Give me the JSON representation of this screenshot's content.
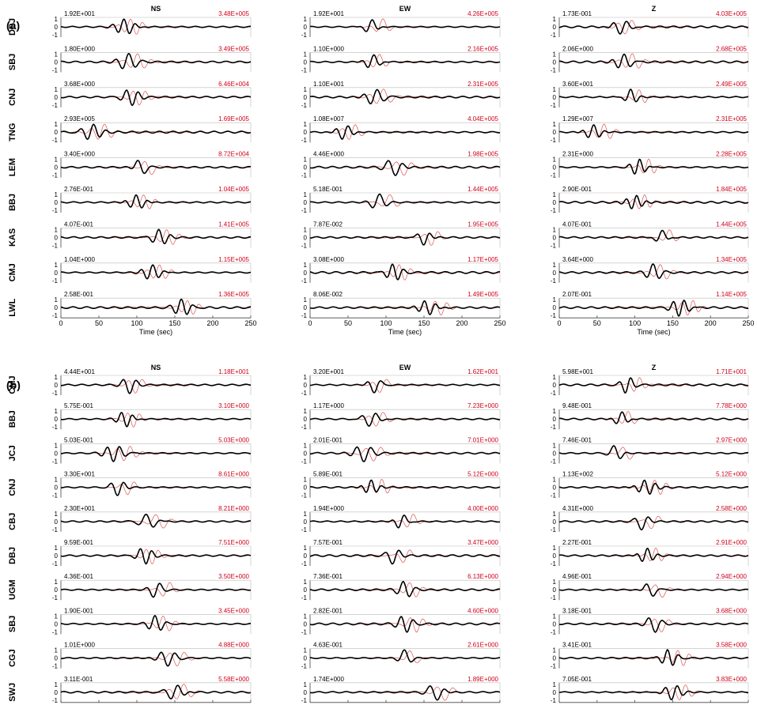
{
  "chart_data": {
    "type": "line",
    "xlim": [
      0,
      250
    ],
    "ylim": [
      -1,
      1
    ],
    "x_ticks": [
      "0",
      "50",
      "100",
      "150",
      "200",
      "250"
    ],
    "y_ticks": [
      "1",
      "0",
      "-1"
    ],
    "xlabel": "Time (sec)",
    "grid": false,
    "colors": {
      "observed": "#000000",
      "synthetic": "#d9534f",
      "red_text": "#d0021b",
      "axis": "#444444"
    },
    "panels": [
      {
        "label": "(a)",
        "components": [
          "NS",
          "EW",
          "Z"
        ],
        "stations": [
          {
            "name": "DBJ",
            "left": [
              "1.92E+001",
              "1.92E+001",
              "1.73E-001"
            ],
            "right": [
              "3.48E+005",
              "4.26E+005",
              "4.03E+005"
            ],
            "center": [
              85,
              80,
              82
            ]
          },
          {
            "name": "SBJ",
            "left": [
              "1.80E+000",
              "1.10E+000",
              "2.06E+000"
            ],
            "right": [
              "3.49E+005",
              "2.16E+005",
              "2.68E+005"
            ],
            "center": [
              88,
              82,
              85
            ]
          },
          {
            "name": "CNJ",
            "left": [
              "3.68E+000",
              "1.10E+001",
              "3.60E+001"
            ],
            "right": [
              "6.46E+004",
              "2.31E+005",
              "2.49E+005"
            ],
            "center": [
              92,
              85,
              95
            ]
          },
          {
            "name": "TNG",
            "left": [
              "2.93E+005",
              "1.08E+007",
              "1.29E+007"
            ],
            "right": [
              "1.69E+005",
              "4.04E+005",
              "2.31E+005"
            ],
            "center": [
              40,
              45,
              45
            ]
          },
          {
            "name": "LEM",
            "left": [
              "3.40E+000",
              "4.46E+000",
              "2.31E+000"
            ],
            "right": [
              "8.72E+004",
              "1.98E+005",
              "2.28E+005"
            ],
            "center": [
              105,
              110,
              105
            ]
          },
          {
            "name": "BBJ",
            "left": [
              "2.76E-001",
              "5.18E-001",
              "2.90E-001"
            ],
            "right": [
              "1.04E+005",
              "1.44E+005",
              "1.84E+005"
            ],
            "center": [
              100,
              90,
              100
            ]
          },
          {
            "name": "KAS",
            "left": [
              "4.07E-001",
              "7.87E-002",
              "4.07E-001"
            ],
            "right": [
              "1.41E+005",
              "1.95E+005",
              "1.44E+005"
            ],
            "center": [
              130,
              150,
              135
            ]
          },
          {
            "name": "CMJ",
            "left": [
              "1.04E+000",
              "3.08E+000",
              "3.64E+000"
            ],
            "right": [
              "1.15E+005",
              "1.17E+005",
              "1.34E+005"
            ],
            "center": [
              120,
              110,
              125
            ]
          },
          {
            "name": "LWL",
            "left": [
              "2.58E-001",
              "8.06E-002",
              "2.07E-001"
            ],
            "right": [
              "1.36E+005",
              "1.49E+005",
              "1.14E+005"
            ],
            "center": [
              160,
              155,
              160
            ]
          }
        ]
      },
      {
        "label": "(b)",
        "components": [
          "NS",
          "EW",
          "Z"
        ],
        "stations": [
          {
            "name": "CMJ",
            "left": [
              "4.44E+001",
              "3.20E+001",
              "5.98E+001"
            ],
            "right": [
              "1.18E+001",
              "1.62E+001",
              "1.71E+001"
            ],
            "center": [
              90,
              85,
              90
            ]
          },
          {
            "name": "BBJ",
            "left": [
              "5.75E-001",
              "1.17E+000",
              "9.48E-001"
            ],
            "right": [
              "3.10E+000",
              "7.23E+000",
              "7.78E+000"
            ],
            "center": [
              85,
              80,
              82
            ]
          },
          {
            "name": "JCJ",
            "left": [
              "5.03E-001",
              "2.01E-001",
              "7.46E-001"
            ],
            "right": [
              "5.03E+000",
              "7.01E+000",
              "2.97E+000"
            ],
            "center": [
              70,
              70,
              75
            ]
          },
          {
            "name": "CNJ",
            "left": [
              "3.30E+001",
              "5.89E-001",
              "1.13E+002"
            ],
            "right": [
              "8.61E+000",
              "5.12E+000",
              "5.12E+000"
            ],
            "center": [
              75,
              80,
              115
            ]
          },
          {
            "name": "CBJ",
            "left": [
              "2.30E+001",
              "1.94E+000",
              "4.31E+000"
            ],
            "right": [
              "8.21E+000",
              "4.00E+000",
              "2.58E+000"
            ],
            "center": [
              115,
              120,
              110
            ]
          },
          {
            "name": "DBJ",
            "left": [
              "9.59E-001",
              "7.57E-001",
              "2.27E-001"
            ],
            "right": [
              "7.51E+000",
              "3.47E+000",
              "2.91E+000"
            ],
            "center": [
              110,
              110,
              115
            ]
          },
          {
            "name": "UGM",
            "left": [
              "4.36E-001",
              "7.36E-001",
              "4.96E-001"
            ],
            "right": [
              "3.50E+000",
              "6.13E+000",
              "2.94E+000"
            ],
            "center": [
              125,
              125,
              120
            ]
          },
          {
            "name": "SBJ",
            "left": [
              "1.90E-001",
              "2.82E-001",
              "3.18E-001"
            ],
            "right": [
              "3.45E+000",
              "4.60E+000",
              "3.68E+000"
            ],
            "center": [
              125,
              125,
              125
            ]
          },
          {
            "name": "CGJ",
            "left": [
              "1.01E+000",
              "4.63E-001",
              "3.41E-001"
            ],
            "right": [
              "4.88E+000",
              "2.61E+000",
              "3.58E+000"
            ],
            "center": [
              140,
              125,
              145
            ]
          },
          {
            "name": "SWJ",
            "left": [
              "3.11E-001",
              "1.74E+000",
              "7.05E-001"
            ],
            "right": [
              "5.58E+000",
              "1.89E+000",
              "3.83E+000"
            ],
            "center": [
              150,
              165,
              150
            ]
          }
        ]
      }
    ]
  }
}
